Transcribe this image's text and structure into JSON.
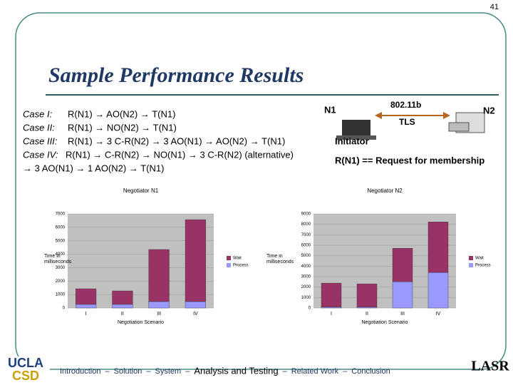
{
  "page_number": "41",
  "header": {
    "title": "Sample Performance Results"
  },
  "cases": [
    {
      "label": "Case I:",
      "text": "R(N1) → AO(N2) → T(N1)"
    },
    {
      "label": "Case II:",
      "text": "R(N1) → NO(N2) → T(N1)"
    },
    {
      "label": "Case III:",
      "text": "R(N1) → 3 C-R(N2) → 3 AO(N1) → AO(N2) → T(N1)"
    },
    {
      "label": "Case IV:",
      "text": "R(N1) → C-R(N2) → NO(N1) → 3 C-R(N2) (alternative)"
    }
  ],
  "case_continuation": "→ 3 AO(N1) → 1 AO(N2) → T(N1)",
  "diagram": {
    "node1": "N1",
    "node2": "N2",
    "link": "802.11b",
    "protocol": "TLS",
    "role": "Initiator",
    "note": "R(N1) == Request for membership"
  },
  "chart_data": [
    {
      "type": "bar",
      "stacked": true,
      "title": "Negotiator N1",
      "y_label": "Time in milliseconds",
      "x_label": "Negotiation Scenario",
      "categories": [
        "I",
        "II",
        "III",
        "IV"
      ],
      "series": [
        {
          "name": "Wait",
          "color": "#993366",
          "values": [
            1160,
            1000,
            3870,
            6090
          ]
        },
        {
          "name": "Process",
          "color": "#9999ff",
          "values": [
            270,
            270,
            480,
            480
          ]
        }
      ],
      "ylim": [
        0,
        7000
      ],
      "yticks": [
        0,
        1000,
        2000,
        3000,
        4000,
        5000,
        6000,
        7000
      ]
    },
    {
      "type": "bar",
      "stacked": true,
      "title": "Negotiator N2",
      "y_label": "Time in milliseconds",
      "x_label": "Negotiation Scenario",
      "categories": [
        "I",
        "II",
        "III",
        "IV"
      ],
      "series": [
        {
          "name": "Wait",
          "color": "#993366",
          "values": [
            2280,
            2210,
            3190,
            4830
          ]
        },
        {
          "name": "Process",
          "color": "#9999ff",
          "values": [
            100,
            100,
            2520,
            3400
          ]
        }
      ],
      "ylim": [
        0,
        9000
      ],
      "yticks": [
        0,
        1000,
        2000,
        3000,
        4000,
        5000,
        6000,
        7000,
        8000,
        9000
      ]
    }
  ],
  "footer": {
    "nav": [
      "Introduction",
      "Solution",
      "System",
      "Analysis and Testing",
      "Related Work",
      "Conclusion"
    ],
    "nav_separator": "–",
    "logo_left_top": "UCLA",
    "logo_left_bottom": "CSD",
    "logo_right": "LASR"
  }
}
